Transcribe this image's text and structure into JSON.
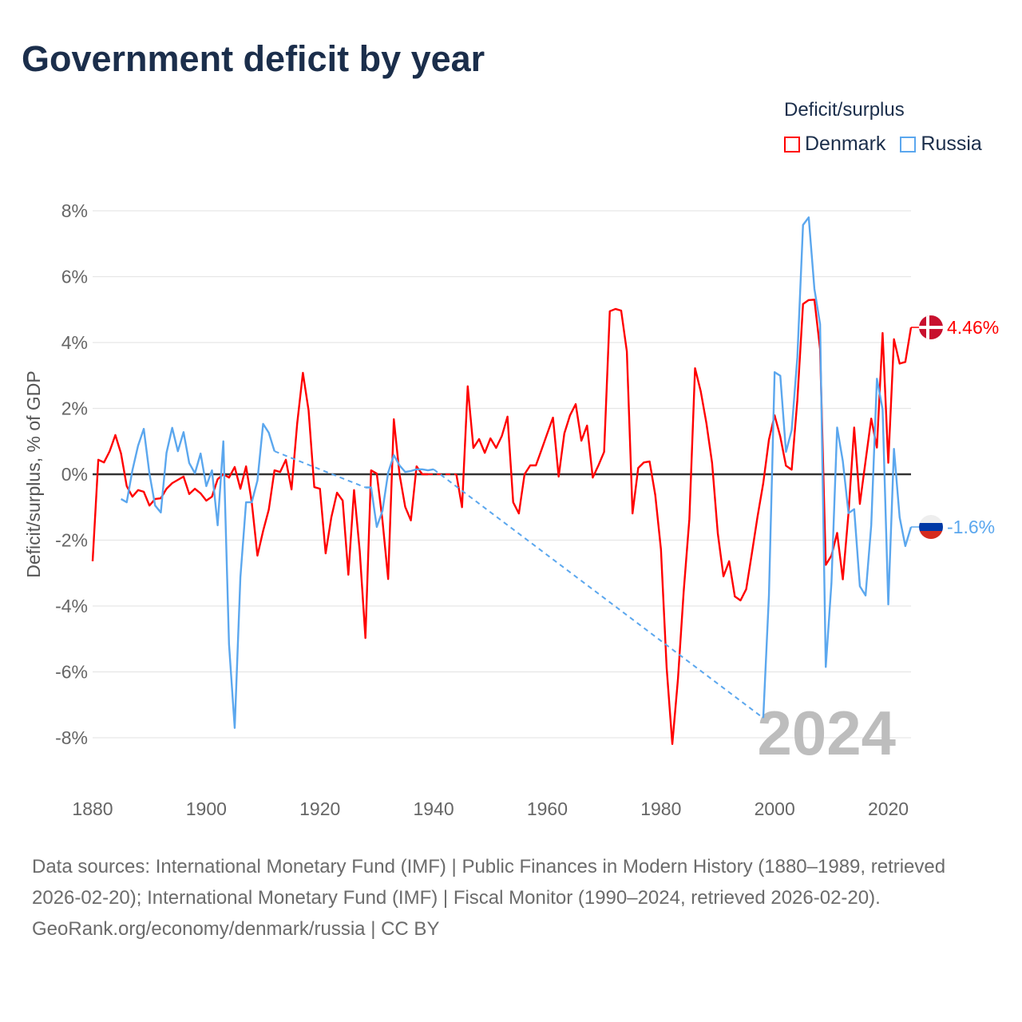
{
  "title": "Government deficit by year",
  "legend": {
    "title": "Deficit/surplus",
    "items": [
      {
        "label": "Denmark",
        "color": "#ff0000"
      },
      {
        "label": "Russia",
        "color": "#5ba7ee"
      }
    ]
  },
  "current_year": "2024",
  "footer": {
    "sources": "Data sources: International Monetary Fund (IMF) | Public Finances in Modern History (1880–1989, retrieved 2026-02-20); International Monetary Fund (IMF) | Fiscal Monitor (1990–2024, retrieved 2026-02-20).",
    "credit": "GeoRank.org/economy/denmark/russia | CC BY"
  },
  "chart_data": {
    "type": "line",
    "title": "Government deficit by year",
    "xlabel": "",
    "ylabel": "Deficit/surplus, % of GDP",
    "xlim": [
      1880,
      2024
    ],
    "ylim": [
      -8,
      8
    ],
    "x_ticks": [
      "1880",
      "1900",
      "1920",
      "1940",
      "1960",
      "1980",
      "2000",
      "2020"
    ],
    "y_ticks": [
      "8%",
      "6%",
      "4%",
      "2%",
      "0%",
      "-2%",
      "-4%",
      "-6%",
      "-8%"
    ],
    "y_tick_values": [
      8,
      6,
      4,
      2,
      0,
      -2,
      -4,
      -6,
      -8
    ],
    "x_tick_values": [
      1880,
      1900,
      1920,
      1940,
      1960,
      1980,
      2000,
      2020
    ],
    "grid": true,
    "legend_position": "top-right",
    "start_year": 1880,
    "series": [
      {
        "name": "Denmark",
        "color": "#ff0000",
        "flag": "denmark-flag",
        "end_label": "4.46%",
        "values": [
          -2.64,
          0.44,
          0.36,
          0.7,
          1.19,
          0.63,
          -0.36,
          -0.68,
          -0.48,
          -0.53,
          -0.95,
          -0.75,
          -0.73,
          -0.44,
          -0.27,
          -0.17,
          -0.07,
          -0.6,
          -0.44,
          -0.58,
          -0.8,
          -0.68,
          -0.15,
          0,
          -0.1,
          0.22,
          -0.44,
          0.24,
          -0.85,
          -2.47,
          -1.72,
          -1.07,
          0.12,
          0.07,
          0.44,
          -0.46,
          1.55,
          3.08,
          1.94,
          -0.39,
          -0.44,
          -2.4,
          -1.31,
          -0.56,
          -0.8,
          -3.05,
          -0.48,
          -2.33,
          -4.97,
          0.12,
          0.02,
          -1.4,
          -3.18,
          1.67,
          0,
          -0.99,
          -1.4,
          0.24,
          0,
          0,
          null,
          null,
          null,
          null,
          0,
          -1.0,
          2.67,
          0.8,
          1.07,
          0.65,
          1.09,
          0.8,
          1.16,
          1.75,
          -0.85,
          -1.19,
          0,
          0.27,
          0.27,
          0.75,
          1.24,
          1.72,
          -0.07,
          1.24,
          1.79,
          2.13,
          1.02,
          1.48,
          -0.1,
          0.27,
          0.68,
          4.95,
          5.02,
          4.97,
          3.73,
          -1.19,
          0.19,
          0.36,
          0.39,
          -0.63,
          -2.28,
          -5.87,
          -8.19,
          -6.2,
          -3.56,
          -1.36,
          3.22,
          2.52,
          1.55,
          0.34,
          -1.79,
          -3.1,
          -2.64,
          -3.71,
          -3.83,
          -3.49,
          -2.4,
          -1.28,
          -0.27,
          1.05,
          1.79,
          1.14,
          0.26,
          0.14,
          2.25,
          5.17,
          5.29,
          5.3,
          3.8,
          -2.75,
          -2.47,
          -1.78,
          -3.19,
          -1.18,
          1.42,
          -0.9,
          0.4,
          1.69,
          0.81,
          4.29,
          0.35,
          4.1,
          3.36,
          3.41,
          4.46
        ]
      },
      {
        "name": "Russia",
        "color": "#5ba7ee",
        "flag": "russia-flag",
        "end_label": "-1.6%",
        "values": [
          null,
          null,
          null,
          null,
          null,
          -0.75,
          -0.85,
          0.12,
          0.87,
          1.38,
          0.02,
          -0.95,
          -1.16,
          0.65,
          1.41,
          0.7,
          1.28,
          0.34,
          0.03,
          0.63,
          -0.36,
          0.12,
          -1.55,
          1.0,
          -5.16,
          -7.7,
          -3.13,
          -0.85,
          -0.85,
          -0.19,
          1.53,
          1.26,
          0.7,
          null,
          null,
          null,
          null,
          null,
          null,
          null,
          null,
          null,
          null,
          null,
          null,
          null,
          null,
          null,
          -0.4,
          -0.4,
          -1.6,
          -1.11,
          0.05,
          0.58,
          0.27,
          0.07,
          0.1,
          0.15,
          0.15,
          0.12,
          0.15,
          null,
          null,
          null,
          null,
          null,
          null,
          null,
          null,
          null,
          null,
          null,
          null,
          null,
          null,
          null,
          null,
          null,
          null,
          null,
          null,
          null,
          null,
          null,
          null,
          null,
          null,
          null,
          null,
          null,
          null,
          null,
          null,
          null,
          null,
          null,
          null,
          null,
          null,
          null,
          null,
          null,
          null,
          null,
          null,
          null,
          null,
          null,
          null,
          null,
          null,
          null,
          null,
          null,
          null,
          null,
          null,
          null,
          -7.4,
          -3.68,
          3.1,
          2.99,
          0.68,
          1.34,
          3.55,
          7.57,
          7.8,
          5.63,
          4.56,
          -5.85,
          -3.3,
          1.42,
          0.4,
          -1.18,
          -1.06,
          -3.4,
          -3.68,
          -1.55,
          2.9,
          1.97,
          -3.95,
          0.77,
          -1.31,
          -2.18,
          -1.6
        ]
      }
    ]
  }
}
